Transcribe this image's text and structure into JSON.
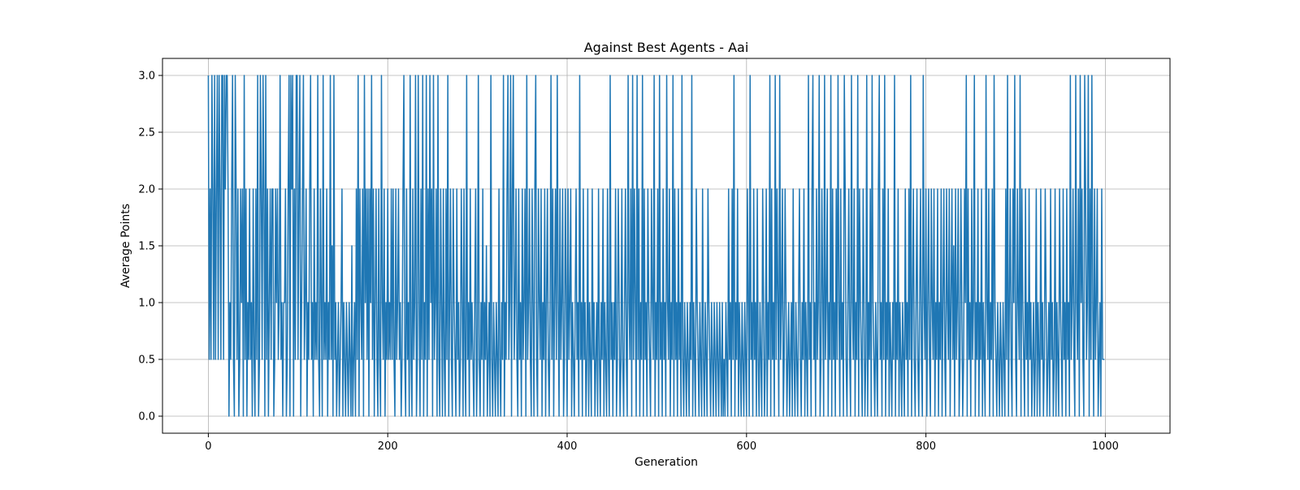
{
  "chart_data": {
    "type": "line",
    "title": "Against Best Agents - Aai",
    "xlabel": "Generation",
    "ylabel": "Average Points",
    "xlim": [
      -51.1,
      1072.1
    ],
    "ylim": [
      -0.15,
      3.15
    ],
    "x_ticks": [
      0,
      200,
      400,
      600,
      800,
      1000
    ],
    "x_tick_labels": [
      "0",
      "200",
      "400",
      "600",
      "800",
      "1000"
    ],
    "y_ticks": [
      0.0,
      0.5,
      1.0,
      1.5,
      2.0,
      2.5,
      3.0
    ],
    "y_tick_labels": [
      "0.0",
      "0.5",
      "1.0",
      "1.5",
      "2.0",
      "2.5",
      "3.0"
    ],
    "grid": true,
    "line_color": "#1f77b4",
    "series": [
      {
        "x_start": 0,
        "x_step": 1,
        "values": [
          3,
          0.5,
          2,
          0.5,
          3,
          2,
          0.5,
          3,
          0.5,
          2,
          3,
          0.5,
          3,
          2,
          0.5,
          3,
          3,
          0.5,
          3,
          2,
          3,
          3,
          2,
          0,
          1,
          0.5,
          2,
          3,
          0.5,
          0,
          3,
          2,
          0.5,
          2,
          0,
          0.5,
          2,
          1,
          2,
          0,
          3,
          0.5,
          2,
          0,
          1,
          0.5,
          2,
          0.5,
          1,
          0,
          2,
          0.5,
          0,
          2,
          0.5,
          3,
          0,
          0.5,
          3,
          2,
          0.5,
          3,
          2,
          0,
          3,
          0.5,
          2,
          0,
          1,
          2,
          0.5,
          2,
          2,
          0,
          0.5,
          2,
          1,
          2,
          0.5,
          1,
          3,
          0.5,
          1,
          0,
          1,
          1,
          2,
          0,
          0.5,
          2,
          3,
          0,
          3,
          2,
          3,
          0,
          2,
          0.5,
          3,
          3,
          0.5,
          2,
          3,
          0,
          1,
          2,
          3,
          0.5,
          1,
          2,
          0,
          1,
          0.5,
          2,
          3,
          0.5,
          1,
          0,
          2,
          0.5,
          1,
          0.5,
          3,
          0.5,
          0,
          2,
          1,
          0,
          3,
          0.5,
          1,
          0.5,
          2,
          0,
          1,
          0.5,
          3,
          0.5,
          1.5,
          0,
          3,
          0.5,
          1,
          0,
          0.5,
          1,
          0,
          0.5,
          1,
          2,
          0,
          1,
          0.5,
          0,
          1,
          0.5,
          0,
          1,
          0.5,
          0,
          1.5,
          0,
          0.5,
          1,
          0,
          2,
          0.5,
          3,
          0,
          2,
          1,
          0.5,
          2,
          0,
          3,
          1,
          2,
          0.5,
          2,
          0,
          2,
          1,
          3,
          0.5,
          2,
          0,
          1,
          2,
          0.5,
          0,
          2,
          0.5,
          0,
          3,
          1,
          0.5,
          2,
          0,
          1,
          0.5,
          2,
          0.5,
          1,
          0.5,
          2,
          0.5,
          2,
          0.5,
          0,
          2,
          0.5,
          1,
          2,
          0.5,
          1,
          0,
          0.5,
          2,
          3,
          0.5,
          0,
          2,
          0.5,
          1,
          0,
          3,
          0.5,
          0,
          2,
          0.5,
          1,
          3,
          0,
          0.5,
          3,
          1,
          0,
          2,
          0.5,
          3,
          0,
          1,
          0.5,
          3,
          0,
          2,
          0.5,
          3,
          1,
          2,
          0,
          3,
          0.5,
          1,
          2,
          0,
          3,
          0.5,
          0,
          2,
          1,
          0,
          2,
          0.5,
          0,
          2,
          0.5,
          3,
          0,
          1,
          2,
          0.5,
          0,
          2,
          1,
          0.5,
          0,
          2,
          0.5,
          1,
          0,
          0.5,
          2,
          1,
          0,
          2,
          0.5,
          0,
          3,
          0.5,
          1,
          0,
          2,
          0.5,
          1,
          0.5,
          0,
          1,
          2,
          0,
          0.5,
          3,
          0.5,
          0,
          1,
          0.5,
          2,
          0,
          1,
          0.5,
          1.5,
          0,
          0.5,
          1,
          0,
          3,
          0.5,
          0,
          1,
          0.5,
          0,
          1,
          0.5,
          0,
          2,
          0.5,
          0,
          1,
          0.5,
          3,
          0,
          1,
          0.5,
          2,
          3,
          0.5,
          1,
          3,
          0,
          2,
          3,
          0.5,
          1,
          2,
          0.5,
          0,
          2,
          0.5,
          1,
          0,
          2,
          0.5,
          1,
          2,
          0,
          3,
          0.5,
          1,
          2,
          0.5,
          0,
          2,
          1,
          0,
          2,
          3,
          0.5,
          0,
          2,
          1,
          0.5,
          2,
          0,
          1,
          0.5,
          2,
          0,
          1,
          2,
          0.5,
          0,
          1,
          3,
          0.5,
          2,
          0,
          1,
          2,
          0.5,
          3,
          1,
          0,
          2,
          0.5,
          1,
          2,
          0,
          0.5,
          2,
          1,
          0,
          2,
          0.5,
          1,
          2,
          0,
          1,
          0.5,
          0,
          1,
          2,
          0.5,
          1,
          0,
          3,
          0.5,
          1,
          0,
          2,
          0.5,
          1,
          0,
          0.5,
          2,
          0,
          1,
          0.5,
          0,
          2,
          0.5,
          1,
          0,
          0.5,
          1,
          0,
          2,
          0.5,
          0,
          1,
          0.5,
          2,
          0,
          1,
          0.5,
          0,
          2,
          0.5,
          0,
          3,
          0.5,
          1,
          0,
          1,
          0.5,
          2,
          0,
          0.5,
          2,
          1,
          0,
          0.5,
          2,
          0.5,
          0,
          1,
          2,
          0.5,
          0,
          3,
          1,
          0.5,
          2,
          0,
          3,
          0.5,
          2,
          1,
          0,
          3,
          0.5,
          2,
          0,
          1,
          0.5,
          3,
          0,
          2,
          0.5,
          1,
          0,
          2,
          1,
          0.5,
          0,
          2,
          1,
          0.5,
          3,
          0,
          1,
          0.5,
          2,
          0,
          3,
          0.5,
          1,
          0,
          2,
          0.5,
          1,
          0,
          3,
          1,
          0.5,
          2,
          0,
          1,
          0.5,
          3,
          0,
          2,
          0.5,
          1,
          0,
          2,
          0.5,
          1,
          0,
          3,
          0.5,
          0,
          1,
          0.5,
          0,
          1,
          0.5,
          0,
          1,
          0.5,
          3,
          0,
          1,
          0.5,
          0,
          2,
          1,
          0.5,
          0,
          1,
          0.5,
          0,
          2,
          0.5,
          0,
          1,
          0.5,
          0,
          2,
          1,
          0.5,
          0,
          1,
          0.5,
          0,
          1,
          0.5,
          0,
          1,
          0.5,
          0,
          1,
          0.5,
          0,
          1,
          0,
          0.5,
          0,
          1,
          0.5,
          0,
          2,
          0.5,
          1,
          0,
          2,
          0.5,
          3,
          0,
          1,
          0.5,
          2,
          0,
          1,
          0.5,
          0,
          1,
          0.5,
          0,
          1,
          0.5,
          0,
          2,
          1,
          0,
          3,
          0.5,
          1,
          0,
          2,
          0.5,
          1,
          0,
          2,
          0.5,
          0,
          1,
          0.5,
          0,
          2,
          1,
          0,
          0.5,
          2,
          0,
          1,
          0.5,
          3,
          0,
          2,
          0.5,
          1,
          0,
          3,
          0.5,
          2,
          1,
          0,
          3,
          0.5,
          1,
          2,
          0,
          0.5,
          2,
          1,
          0,
          0.5,
          1,
          0,
          0.5,
          1,
          0,
          2,
          0.5,
          0,
          1,
          0.5,
          0,
          1,
          2,
          0.5,
          0,
          1,
          0.5,
          2,
          0,
          1,
          0.5,
          0,
          3,
          0.5,
          1,
          0,
          2,
          3,
          0.5,
          1,
          0,
          2,
          0.5,
          1,
          3,
          0,
          0.5,
          2,
          1,
          0,
          3,
          0.5,
          1,
          2,
          0,
          1,
          0.5,
          3,
          0,
          2,
          0.5,
          1,
          0,
          2,
          0.5,
          3,
          1,
          0,
          2,
          0.5,
          1,
          0,
          3,
          2,
          0.5,
          0,
          1,
          2,
          0.5,
          0,
          3,
          1,
          0.5,
          2,
          0,
          1,
          0.5,
          3,
          0,
          2,
          1,
          0.5,
          0,
          2,
          1,
          0,
          0.5,
          3,
          0,
          1,
          0.5,
          2,
          0,
          3,
          1,
          0.5,
          0,
          1,
          0.5,
          0,
          2,
          3,
          0.5,
          1,
          0,
          2,
          0.5,
          3,
          0,
          1,
          0.5,
          2,
          0,
          1,
          0.5,
          0,
          1,
          0.5,
          3,
          0,
          1,
          0.5,
          2,
          0,
          1,
          0.5,
          0,
          1,
          0.5,
          0,
          2,
          0.5,
          1,
          0,
          2,
          0.5,
          3,
          0,
          1,
          2,
          0.5,
          0,
          1,
          2,
          0.5,
          0,
          1,
          2,
          0.5,
          0,
          3,
          1,
          0.5,
          2,
          0,
          1,
          2,
          0.5,
          0,
          2,
          1,
          0.5,
          2,
          0,
          1,
          0.5,
          2,
          0,
          1,
          0.5,
          2,
          0,
          1,
          2,
          0.5,
          0,
          2,
          1,
          0.5,
          2,
          0,
          1,
          2,
          0.5,
          1.5,
          0,
          2,
          0.5,
          1,
          2,
          0,
          0.5,
          2,
          1,
          0,
          0.5,
          2,
          1,
          3,
          0,
          2,
          0.5,
          1,
          0,
          2,
          0.5,
          1,
          3,
          0,
          1,
          0.5,
          2,
          0,
          1,
          0.5,
          2,
          0,
          1,
          0.5,
          0,
          3,
          1,
          0.5,
          2,
          0,
          1,
          0.5,
          2,
          0,
          3,
          1,
          0.5,
          0,
          1,
          0.5,
          0,
          1,
          0.5,
          0,
          1,
          0.5,
          0,
          2,
          0.5,
          3,
          0,
          1,
          2,
          0.5,
          0,
          2,
          1,
          3,
          0.5,
          0,
          2,
          1,
          0.5,
          3,
          0,
          2,
          1,
          0.5,
          0,
          2,
          0.5,
          1,
          0,
          2,
          0.5,
          1,
          0,
          0.5,
          1,
          0,
          0.5,
          2,
          0,
          1,
          0.5,
          0,
          2,
          0.5,
          1,
          0,
          0.5,
          2,
          1,
          0,
          0.5,
          1,
          0,
          2,
          0.5,
          1,
          0,
          0.5,
          2,
          0,
          1,
          0.5,
          0,
          2,
          1,
          0.5,
          0,
          2,
          0.5,
          1,
          0,
          2,
          0.5,
          1,
          0,
          3,
          0.5,
          1,
          2,
          0.5,
          0,
          3,
          1,
          0.5,
          2,
          0,
          3,
          1,
          2,
          0.5,
          0,
          3,
          2,
          0.5,
          1,
          3,
          0,
          2,
          0.5,
          3,
          1,
          0,
          2,
          0.5,
          1,
          2,
          0,
          0.5,
          1,
          0,
          2,
          0.5,
          0.5,
          0.5
        ]
      }
    ]
  }
}
